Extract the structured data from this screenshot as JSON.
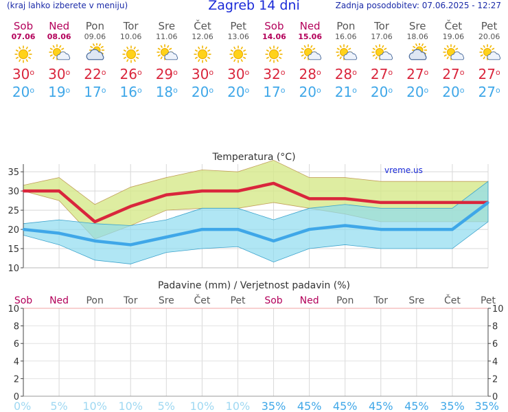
{
  "header": {
    "hint": "(kraj lahko izberete v meniju)",
    "title": "Zagreb 14 dni",
    "updated": "Zadnja posodobitev: 07.06.2025 - 12:27"
  },
  "days": [
    {
      "name": "Sob",
      "date": "07.06",
      "weekend": true,
      "icon": "sun-icon",
      "max": "30",
      "min": "20"
    },
    {
      "name": "Ned",
      "date": "08.06",
      "weekend": true,
      "icon": "sun-cloud-icon",
      "max": "30",
      "min": "19"
    },
    {
      "name": "Pon",
      "date": "09.06",
      "weekend": false,
      "icon": "cloud-sun-icon",
      "max": "22",
      "min": "17"
    },
    {
      "name": "Tor",
      "date": "10.06",
      "weekend": false,
      "icon": "sun-icon",
      "max": "26",
      "min": "16"
    },
    {
      "name": "Sre",
      "date": "11.06",
      "weekend": false,
      "icon": "sun-cloud-icon",
      "max": "29",
      "min": "18"
    },
    {
      "name": "Čet",
      "date": "12.06",
      "weekend": false,
      "icon": "sun-icon",
      "max": "30",
      "min": "20"
    },
    {
      "name": "Pet",
      "date": "13.06",
      "weekend": false,
      "icon": "sun-icon",
      "max": "30",
      "min": "20"
    },
    {
      "name": "Sob",
      "date": "14.06",
      "weekend": true,
      "icon": "sun-icon",
      "max": "32",
      "min": "17"
    },
    {
      "name": "Ned",
      "date": "15.06",
      "weekend": true,
      "icon": "sun-cloud-icon",
      "max": "28",
      "min": "20"
    },
    {
      "name": "Pon",
      "date": "16.06",
      "weekend": false,
      "icon": "sun-cloud-icon",
      "max": "28",
      "min": "21"
    },
    {
      "name": "Tor",
      "date": "17.06",
      "weekend": false,
      "icon": "sun-cloud-icon",
      "max": "27",
      "min": "20"
    },
    {
      "name": "Sre",
      "date": "18.06",
      "weekend": false,
      "icon": "cloud-sun-icon",
      "max": "27",
      "min": "20"
    },
    {
      "name": "Čet",
      "date": "19.06",
      "weekend": false,
      "icon": "sun-cloud-icon",
      "max": "27",
      "min": "20"
    },
    {
      "name": "Pet",
      "date": "20.06",
      "weekend": false,
      "icon": "sun-cloud-icon",
      "max": "27",
      "min": "27"
    }
  ],
  "colors": {
    "max": "#d9263c",
    "min": "#3fa7e8",
    "weekend": "#b3005a",
    "max_band": "#d6e98a",
    "min_band": "#8fdcef",
    "overlap": "#79c98a"
  },
  "chart_data": [
    {
      "type": "line",
      "title": "Temperatura (°C)",
      "watermark": "vreme.us",
      "ylim": [
        10,
        37
      ],
      "yticks": [
        10,
        15,
        20,
        25,
        30,
        35
      ],
      "grid": true,
      "x": [
        "Sob",
        "Ned",
        "Pon",
        "Tor",
        "Sre",
        "Čet",
        "Pet",
        "Sob",
        "Ned",
        "Pon",
        "Tor",
        "Sre",
        "Čet",
        "Pet"
      ],
      "series": [
        {
          "name": "max",
          "values": [
            30,
            30,
            22,
            26,
            29,
            30,
            30,
            32,
            28,
            28,
            27,
            27,
            27,
            27
          ]
        },
        {
          "name": "min",
          "values": [
            20,
            19,
            17,
            16,
            18,
            20,
            20,
            17,
            20,
            21,
            20,
            20,
            20,
            27
          ]
        }
      ],
      "bands": [
        {
          "upper": [
            31.5,
            33.5,
            26.5,
            31,
            33.5,
            35.5,
            35,
            38,
            33.5,
            33.5,
            32.5,
            32.5,
            32.5,
            32.5
          ],
          "lower": [
            30,
            27.5,
            17.5,
            21,
            25,
            25.5,
            25.5,
            27,
            25.5,
            24,
            22,
            22,
            22,
            22
          ]
        },
        {
          "upper": [
            21.5,
            22.5,
            21.5,
            21,
            22.5,
            25.5,
            25.5,
            22.5,
            25.5,
            26.5,
            25.5,
            25.5,
            25.5,
            32.5
          ],
          "lower": [
            18.5,
            16,
            12,
            11,
            14,
            15,
            15.5,
            11.5,
            15,
            16,
            15,
            15,
            15,
            22
          ]
        }
      ]
    },
    {
      "type": "bar",
      "title": "Padavine (mm) / Verjetnost padavin (%)",
      "categories": [
        "Sob",
        "Ned",
        "Pon",
        "Tor",
        "Sre",
        "Čet",
        "Pet",
        "Sob",
        "Ned",
        "Pon",
        "Tor",
        "Sre",
        "Čet",
        "Pet"
      ],
      "weekend": [
        true,
        true,
        false,
        false,
        false,
        false,
        false,
        true,
        true,
        false,
        false,
        false,
        false,
        false
      ],
      "values": [
        0,
        0,
        0,
        0,
        0,
        0,
        0,
        0,
        0,
        0,
        0,
        0,
        0,
        0
      ],
      "probability": [
        "0%",
        "5%",
        "10%",
        "10%",
        "5%",
        "10%",
        "10%",
        "35%",
        "45%",
        "45%",
        "45%",
        "45%",
        "35%",
        "35%"
      ],
      "ylim": [
        0,
        10
      ],
      "yticks": [
        0,
        2,
        4,
        6,
        8,
        10
      ],
      "grid": true
    }
  ]
}
